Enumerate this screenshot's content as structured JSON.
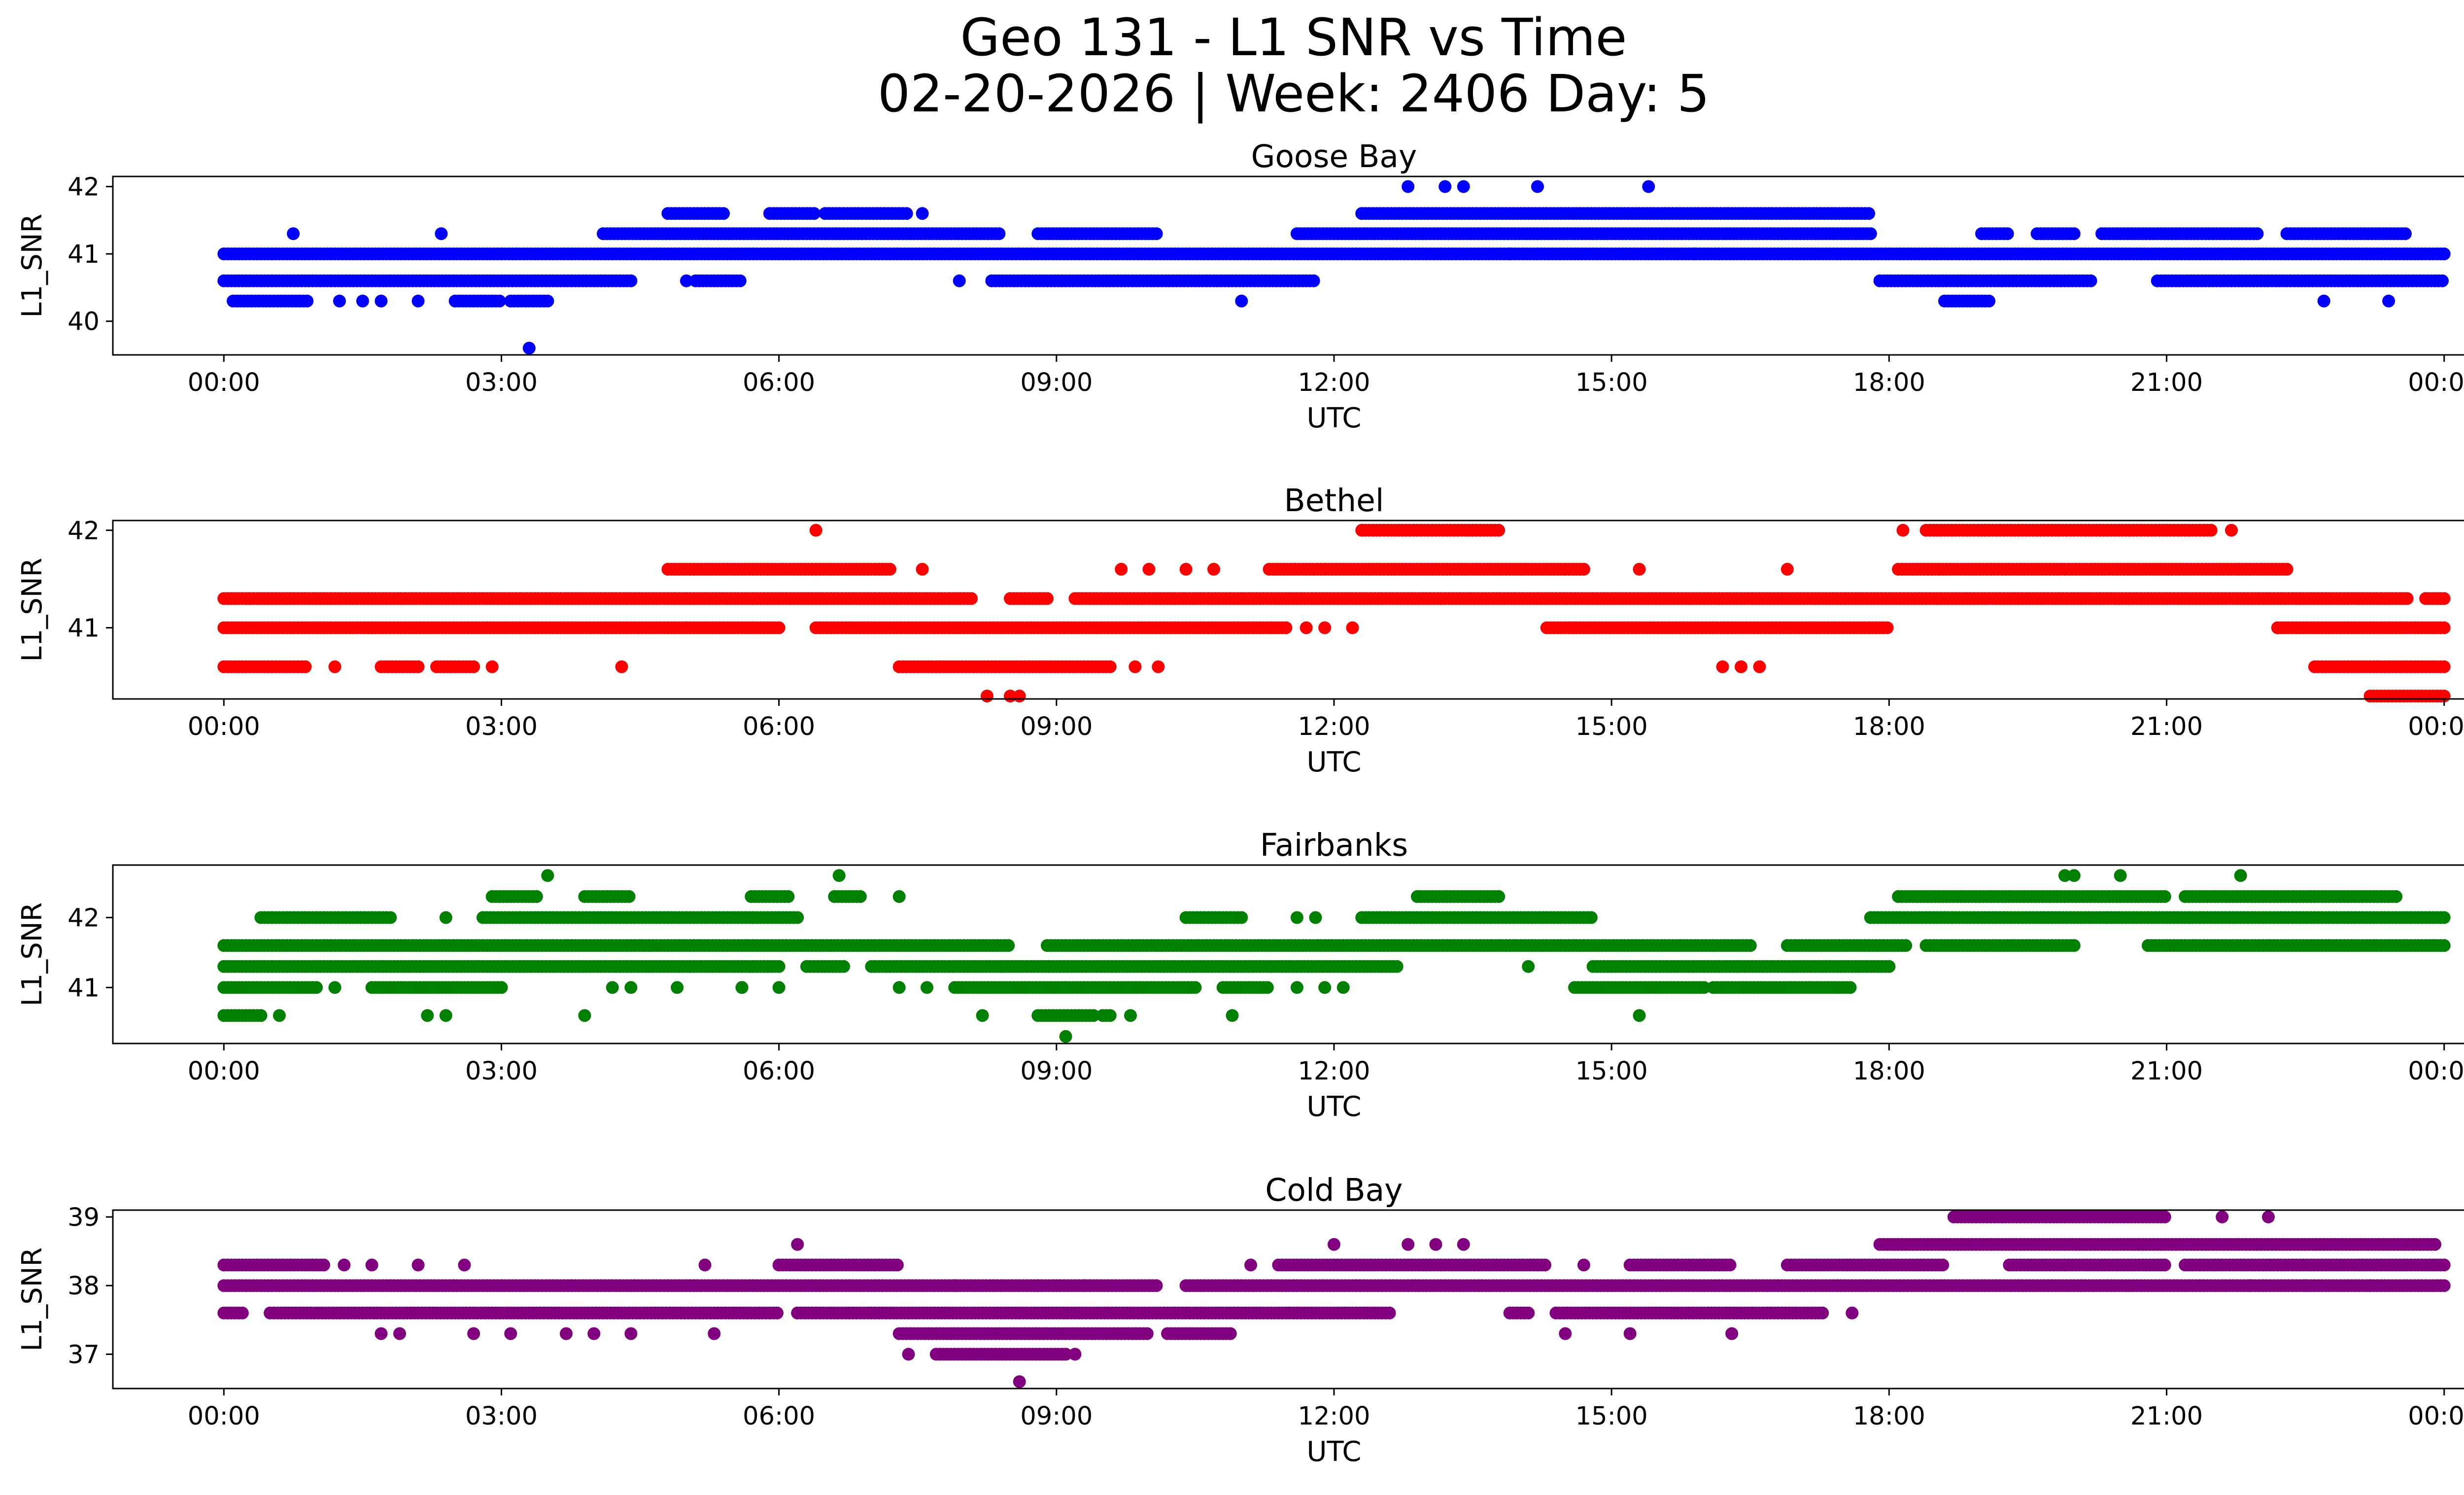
{
  "chart_data": {
    "type": "scatter",
    "title_line1": "Geo 131 - L1 SNR vs Time",
    "title_line2": "02-20-2026 | Week: 2406 Day: 5",
    "xlabel": "UTC",
    "ylabel": "L1_SNR",
    "x_ticks": [
      "00:00",
      "03:00",
      "06:00",
      "09:00",
      "12:00",
      "15:00",
      "18:00",
      "21:00",
      "00:00"
    ],
    "x_range_hours": [
      -1.2,
      25.2
    ],
    "panels": [
      {
        "name": "Goose Bay",
        "color": "#0000ff",
        "ylim": [
          39.5,
          42.15
        ],
        "yticks": [
          40,
          41,
          42
        ],
        "bands": [
          {
            "y": 41.0,
            "segments": [
              [
                0.0,
                24.0
              ]
            ]
          },
          {
            "y": 40.6,
            "segments": [
              [
                0.0,
                4.4
              ],
              [
                5.1,
                5.6
              ],
              [
                8.3,
                11.8
              ],
              [
                17.9,
                20.2
              ],
              [
                20.9,
                24.0
              ]
            ]
          },
          {
            "y": 40.3,
            "segments": [
              [
                0.1,
                0.9
              ],
              [
                2.5,
                3.0
              ],
              [
                3.1,
                3.5
              ],
              [
                18.6,
                19.1
              ]
            ]
          },
          {
            "y": 41.3,
            "segments": [
              [
                4.1,
                8.4
              ],
              [
                8.8,
                10.1
              ],
              [
                11.6,
                17.8
              ],
              [
                19.0,
                19.3
              ],
              [
                19.6,
                20.0
              ],
              [
                20.3,
                22.0
              ],
              [
                22.3,
                23.6
              ]
            ]
          },
          {
            "y": 41.6,
            "segments": [
              [
                4.8,
                5.4
              ],
              [
                5.9,
                6.4
              ],
              [
                6.5,
                7.4
              ],
              [
                12.3,
                17.8
              ]
            ]
          }
        ],
        "scatter": [
          [
            0.75,
            41.3
          ],
          [
            2.35,
            41.3
          ],
          [
            1.25,
            40.3
          ],
          [
            1.5,
            40.3
          ],
          [
            1.7,
            40.3
          ],
          [
            2.1,
            40.3
          ],
          [
            3.3,
            39.6
          ],
          [
            7.55,
            41.6
          ],
          [
            7.95,
            40.6
          ],
          [
            11.0,
            40.3
          ],
          [
            12.8,
            42.0
          ],
          [
            13.2,
            42.0
          ],
          [
            13.4,
            42.0
          ],
          [
            14.2,
            42.0
          ],
          [
            15.4,
            42.0
          ],
          [
            13.9,
            41.0
          ],
          [
            15.9,
            41.0
          ],
          [
            22.7,
            40.3
          ],
          [
            23.4,
            40.3
          ],
          [
            5.0,
            40.6
          ]
        ]
      },
      {
        "name": "Bethel",
        "color": "#ff0000",
        "ylim": [
          40.27,
          42.1
        ],
        "yticks": [
          41,
          42
        ],
        "bands": [
          {
            "y": 41.0,
            "segments": [
              [
                0.0,
                5.0
              ],
              [
                5.0,
                6.0
              ],
              [
                6.4,
                11.5
              ],
              [
                14.3,
                18.0
              ],
              [
                22.2,
                24.0
              ]
            ]
          },
          {
            "y": 41.3,
            "segments": [
              [
                0.0,
                8.1
              ],
              [
                8.5,
                8.9
              ],
              [
                9.2,
                23.6
              ],
              [
                23.8,
                24.0
              ]
            ]
          },
          {
            "y": 40.6,
            "segments": [
              [
                0.0,
                0.9
              ],
              [
                1.7,
                2.1
              ],
              [
                2.3,
                2.7
              ],
              [
                7.3,
                9.6
              ],
              [
                22.6,
                24.0
              ]
            ]
          },
          {
            "y": 41.6,
            "segments": [
              [
                4.8,
                7.2
              ],
              [
                11.3,
                14.7
              ],
              [
                18.1,
                22.3
              ]
            ]
          },
          {
            "y": 42.0,
            "segments": [
              [
                12.3,
                13.8
              ],
              [
                18.4,
                21.5
              ]
            ]
          },
          {
            "y": 40.3,
            "segments": [
              [
                23.2,
                24.0
              ]
            ]
          }
        ],
        "scatter": [
          [
            6.4,
            42.0
          ],
          [
            7.55,
            41.6
          ],
          [
            4.3,
            40.6
          ],
          [
            8.25,
            40.3
          ],
          [
            8.5,
            40.3
          ],
          [
            8.6,
            40.3
          ],
          [
            9.7,
            41.6
          ],
          [
            10.4,
            41.6
          ],
          [
            10.7,
            41.6
          ],
          [
            11.7,
            41.0
          ],
          [
            11.9,
            41.0
          ],
          [
            12.2,
            41.0
          ],
          [
            16.2,
            40.6
          ],
          [
            16.4,
            40.6
          ],
          [
            16.6,
            40.6
          ],
          [
            16.9,
            41.6
          ],
          [
            18.15,
            42.0
          ],
          [
            21.7,
            42.0
          ],
          [
            9.85,
            40.6
          ],
          [
            10.1,
            40.6
          ],
          [
            1.2,
            40.6
          ],
          [
            2.9,
            40.6
          ],
          [
            10.0,
            41.6
          ],
          [
            15.3,
            41.6
          ]
        ]
      },
      {
        "name": "Fairbanks",
        "color": "#008000",
        "ylim": [
          40.2,
          42.75
        ],
        "yticks": [
          41,
          42
        ],
        "bands": [
          {
            "y": 41.6,
            "segments": [
              [
                0.0,
                8.5
              ],
              [
                8.9,
                16.5
              ],
              [
                16.9,
                18.2
              ],
              [
                18.4,
                20.0
              ],
              [
                20.8,
                24.0
              ]
            ]
          },
          {
            "y": 41.3,
            "segments": [
              [
                0.0,
                6.0
              ],
              [
                6.3,
                6.7
              ],
              [
                7.0,
                12.7
              ],
              [
                14.8,
                18.0
              ]
            ]
          },
          {
            "y": 41.0,
            "segments": [
              [
                0.0,
                1.0
              ],
              [
                1.6,
                3.0
              ],
              [
                7.9,
                10.5
              ],
              [
                10.8,
                11.3
              ],
              [
                14.6,
                16.0
              ],
              [
                16.1,
                17.6
              ]
            ]
          },
          {
            "y": 42.0,
            "segments": [
              [
                0.4,
                1.8
              ],
              [
                2.8,
                6.2
              ],
              [
                10.4,
                11.0
              ],
              [
                12.3,
                14.8
              ],
              [
                17.8,
                24.0
              ]
            ]
          },
          {
            "y": 42.3,
            "segments": [
              [
                2.9,
                3.4
              ],
              [
                3.9,
                4.4
              ],
              [
                5.7,
                6.1
              ],
              [
                6.6,
                6.9
              ],
              [
                12.9,
                13.8
              ],
              [
                18.1,
                21.0
              ],
              [
                21.2,
                23.5
              ]
            ]
          },
          {
            "y": 40.6,
            "segments": [
              [
                0.0,
                0.4
              ],
              [
                8.8,
                9.4
              ],
              [
                9.5,
                9.6
              ]
            ]
          }
        ],
        "scatter": [
          [
            3.5,
            42.6
          ],
          [
            6.65,
            42.6
          ],
          [
            19.9,
            42.6
          ],
          [
            20.0,
            42.6
          ],
          [
            20.5,
            42.6
          ],
          [
            21.8,
            42.6
          ],
          [
            9.1,
            40.3
          ],
          [
            3.9,
            40.6
          ],
          [
            2.2,
            40.6
          ],
          [
            2.4,
            40.6
          ],
          [
            0.6,
            40.6
          ],
          [
            8.2,
            40.6
          ],
          [
            10.9,
            40.6
          ],
          [
            15.3,
            40.6
          ],
          [
            9.8,
            40.6
          ],
          [
            14.1,
            41.3
          ],
          [
            4.2,
            41.0
          ],
          [
            4.4,
            41.0
          ],
          [
            4.9,
            41.0
          ],
          [
            5.6,
            41.0
          ],
          [
            7.3,
            41.0
          ],
          [
            7.6,
            41.0
          ],
          [
            11.6,
            41.0
          ],
          [
            11.9,
            41.0
          ],
          [
            12.1,
            41.0
          ],
          [
            1.2,
            41.0
          ],
          [
            2.4,
            42.0
          ],
          [
            7.3,
            42.3
          ],
          [
            11.6,
            42.0
          ],
          [
            11.8,
            42.0
          ],
          [
            5.6,
            41.0
          ],
          [
            6.0,
            41.0
          ]
        ]
      },
      {
        "name": "Cold Bay",
        "color": "#800080",
        "ylim": [
          36.5,
          39.1
        ],
        "yticks": [
          37,
          38,
          39
        ],
        "bands": [
          {
            "y": 38.0,
            "segments": [
              [
                0.0,
                10.1
              ],
              [
                10.4,
                24.0
              ]
            ]
          },
          {
            "y": 38.3,
            "segments": [
              [
                0.0,
                1.1
              ],
              [
                6.0,
                7.3
              ],
              [
                11.4,
                14.3
              ],
              [
                15.2,
                16.3
              ],
              [
                16.9,
                18.6
              ],
              [
                19.3,
                21.0
              ],
              [
                21.2,
                24.0
              ]
            ]
          },
          {
            "y": 37.6,
            "segments": [
              [
                0.0,
                0.2
              ],
              [
                0.5,
                6.0
              ],
              [
                6.2,
                12.6
              ],
              [
                13.9,
                14.1
              ],
              [
                14.4,
                17.3
              ]
            ]
          },
          {
            "y": 37.3,
            "segments": [
              [
                7.3,
                10.0
              ],
              [
                10.2,
                10.9
              ]
            ]
          },
          {
            "y": 37.0,
            "segments": [
              [
                7.7,
                9.1
              ]
            ]
          },
          {
            "y": 38.6,
            "segments": [
              [
                17.9,
                23.9
              ]
            ]
          },
          {
            "y": 39.0,
            "segments": [
              [
                18.7,
                21.0
              ]
            ]
          }
        ],
        "scatter": [
          [
            6.2,
            38.6
          ],
          [
            8.6,
            36.6
          ],
          [
            7.4,
            37.0
          ],
          [
            9.2,
            37.0
          ],
          [
            12.0,
            38.6
          ],
          [
            12.8,
            38.6
          ],
          [
            13.1,
            38.6
          ],
          [
            13.4,
            38.6
          ],
          [
            1.7,
            37.3
          ],
          [
            1.9,
            37.3
          ],
          [
            2.7,
            37.3
          ],
          [
            3.1,
            37.3
          ],
          [
            3.7,
            37.3
          ],
          [
            4.0,
            37.3
          ],
          [
            4.4,
            37.3
          ],
          [
            5.3,
            37.3
          ],
          [
            14.5,
            37.3
          ],
          [
            15.2,
            37.3
          ],
          [
            16.3,
            37.3
          ],
          [
            5.2,
            38.3
          ],
          [
            1.3,
            38.3
          ],
          [
            1.6,
            38.3
          ],
          [
            2.1,
            38.3
          ],
          [
            2.6,
            38.3
          ],
          [
            7.9,
            38.0
          ],
          [
            8.8,
            38.0
          ],
          [
            9.3,
            38.0
          ],
          [
            11.1,
            38.3
          ],
          [
            14.7,
            38.3
          ],
          [
            17.6,
            37.6
          ],
          [
            21.6,
            39.0
          ],
          [
            22.1,
            39.0
          ],
          [
            21.9,
            38.0
          ],
          [
            22.5,
            38.0
          ],
          [
            23.2,
            38.0
          ],
          [
            22.2,
            38.3
          ]
        ]
      }
    ]
  }
}
